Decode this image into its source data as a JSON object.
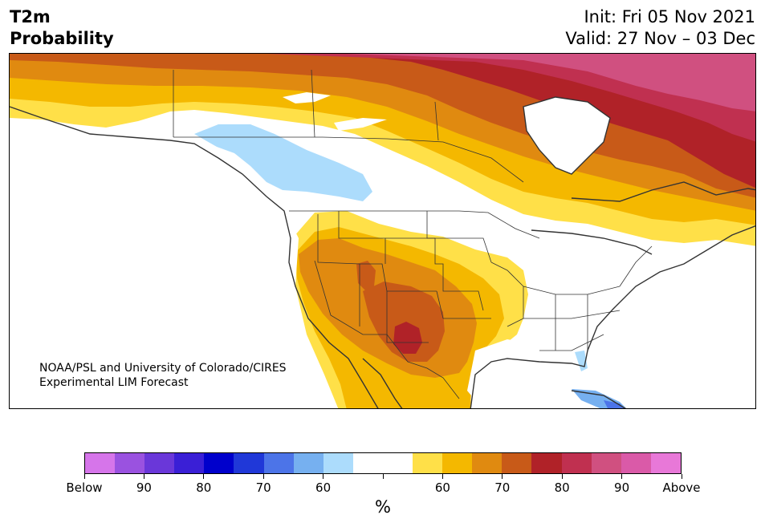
{
  "title": {
    "left_line1": "T2m",
    "left_line2": "Probability",
    "right_line1": "Init: Fri 05 Nov 2021",
    "right_line2": "Valid: 27 Nov – 03 Dec"
  },
  "credit": {
    "line1": "NOAA/PSL and University of Colorado/CIRES",
    "line2": "Experimental LIM Forecast"
  },
  "colorbar": {
    "colors": [
      "#d675ea",
      "#9a52e0",
      "#6a37d9",
      "#3a1fd6",
      "#0000cc",
      "#2038d8",
      "#4c74e8",
      "#76b0f0",
      "#acdcfc",
      "#ffffff",
      "#ffffff",
      "#ffe048",
      "#f4b800",
      "#e08a10",
      "#c85a18",
      "#b02228",
      "#c03050",
      "#d05080",
      "#da5aa8",
      "#e878d8"
    ],
    "labels": [
      "Below",
      "90",
      "80",
      "70",
      "60",
      "",
      "60",
      "70",
      "80",
      "90",
      "Above"
    ],
    "unit": "%"
  },
  "map": {
    "region": "North America",
    "legend_colors": {
      "above_50": "#ffe048",
      "above_60": "#f4b800",
      "above_70": "#e08a10",
      "above_80": "#c85a18",
      "above_90": "#b02228",
      "above_95": "#c03050",
      "above_99": "#d05080",
      "below_60": "#acdcfc",
      "below_70": "#76b0f0",
      "below_80": "#4c74e8"
    }
  }
}
